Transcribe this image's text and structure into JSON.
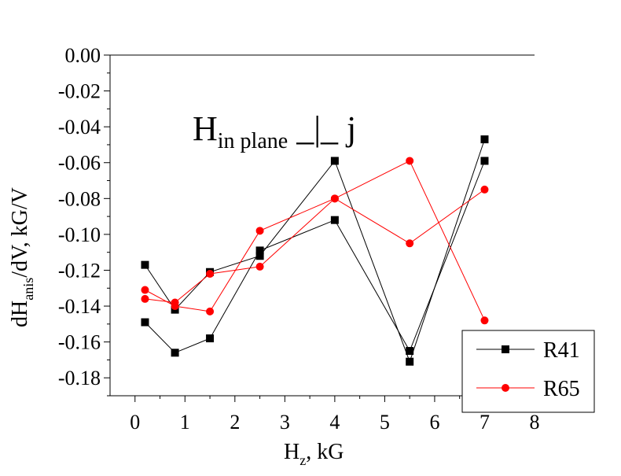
{
  "chart_data": {
    "type": "line",
    "xlabel": {
      "main": "H",
      "sub": "z",
      "rest": ", kG"
    },
    "ylabel": {
      "main": "dH",
      "sub": "anis",
      "rest": "/dV, kG/V"
    },
    "xlim": [
      -0.5,
      8
    ],
    "ylim": [
      -0.19,
      0.0
    ],
    "xticks": [
      0,
      1,
      2,
      3,
      4,
      5,
      6,
      7,
      8
    ],
    "xtick_labels": [
      "0",
      "1",
      "2",
      "3",
      "4",
      "5",
      "6",
      "7",
      "8"
    ],
    "yticks": [
      0.0,
      -0.02,
      -0.04,
      -0.06,
      -0.08,
      -0.1,
      -0.12,
      -0.14,
      -0.16,
      -0.18
    ],
    "ytick_labels": [
      "0.00",
      "-0.02",
      "-0.04",
      "-0.06",
      "-0.08",
      "-0.10",
      "-0.12",
      "-0.14",
      "-0.16",
      "-0.18"
    ],
    "grid": false,
    "legend_position": "bottom-right",
    "annotation": {
      "main": "H",
      "sub": "in plane",
      "rest": " _|_ j"
    },
    "series": [
      {
        "name": "R41",
        "color": "#000000",
        "marker": "square",
        "lines": [
          {
            "x": [
              0.2,
              0.8,
              1.5,
              2.5,
              4.0,
              5.5,
              7.0
            ],
            "y": [
              -0.117,
              -0.142,
              -0.121,
              -0.112,
              -0.059,
              -0.171,
              -0.047
            ]
          },
          {
            "x": [
              0.2,
              0.8,
              1.5,
              2.5,
              4.0,
              5.5,
              7.0
            ],
            "y": [
              -0.149,
              -0.166,
              -0.158,
              -0.109,
              -0.092,
              -0.165,
              -0.059
            ]
          }
        ]
      },
      {
        "name": "R65",
        "color": "#ff0000",
        "marker": "circle",
        "lines": [
          {
            "x": [
              0.2,
              0.8,
              1.5,
              2.5,
              4.0,
              5.5,
              7.0
            ],
            "y": [
              -0.131,
              -0.14,
              -0.143,
              -0.098,
              -0.08,
              -0.059,
              -0.148
            ]
          },
          {
            "x": [
              0.2,
              0.8,
              1.5,
              2.5,
              4.0,
              5.5,
              7.0
            ],
            "y": [
              -0.136,
              -0.138,
              -0.122,
              -0.118,
              -0.08,
              -0.105,
              -0.075
            ]
          }
        ]
      }
    ]
  }
}
